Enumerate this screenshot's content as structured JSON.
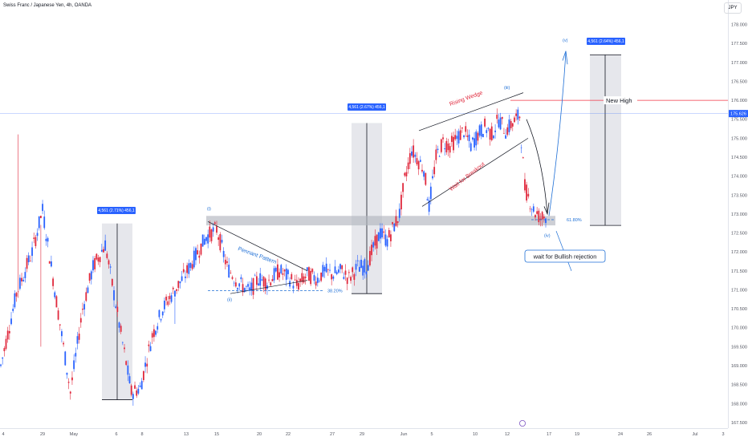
{
  "header": {
    "title": "Swiss Franc / Japanese Yen, 4h, OANDA",
    "currency_button": "JPY"
  },
  "chart_data": {
    "type": "candlestick",
    "symbol": "CHFJPY",
    "timeframe": "4h",
    "ylim": [
      167.35,
      178.35
    ],
    "y_ticks": [
      167.5,
      168.0,
      168.5,
      169.0,
      169.5,
      170.0,
      170.5,
      171.0,
      171.5,
      172.0,
      172.5,
      173.0,
      173.5,
      174.0,
      174.5,
      175.0,
      175.5,
      176.0,
      176.5,
      177.0,
      177.5,
      178.0
    ],
    "y_tick_labels": [
      "167.500",
      "168.000",
      "168.500",
      "169.000",
      "169.500",
      "170.000",
      "170.500",
      "171.000",
      "171.500",
      "172.000",
      "172.500",
      "173.000",
      "173.500",
      "174.000",
      "174.500",
      "175.000",
      "175.500",
      "176.000",
      "176.500",
      "177.000",
      "177.500",
      "178.000"
    ],
    "x_tick_labels": [
      "4",
      "29",
      "May",
      "6",
      "8",
      "13",
      "15",
      "20",
      "22",
      "27",
      "29",
      "Jun",
      "5",
      "10",
      "12",
      "17",
      "19",
      "24",
      "26",
      "Jul",
      "3"
    ],
    "current_price": "175.626",
    "colors": {
      "up": "#2962ff",
      "down": "#e0283c",
      "wedge_text": "#e0283c",
      "annotation_blue": "#1e6fd6"
    },
    "path": [
      169.0,
      170.9,
      172.0,
      173.1,
      168.3,
      170.5,
      171.6,
      172.2,
      170.1,
      168.3,
      168.4,
      169.8,
      170.5,
      171.0,
      171.4,
      171.9,
      172.4,
      172.6,
      171.6,
      171.2,
      170.95,
      171.3,
      171.2,
      171.5,
      171.3,
      171.1,
      171.4,
      171.3,
      171.5,
      171.4,
      171.5,
      171.3,
      171.6,
      171.6,
      172.1,
      172.5,
      172.3,
      172.7,
      173.0,
      173.9,
      174.7,
      174.4,
      174.2,
      173.2,
      174.5,
      174.9,
      174.8,
      175.0,
      175.2,
      174.8,
      175.1,
      175.3,
      175.1,
      175.5,
      175.2,
      175.4,
      175.6,
      173.7,
      173.1,
      172.9,
      172.95
    ],
    "path_indices": [
      0,
      9,
      18,
      24,
      40,
      47,
      53,
      60,
      68,
      75,
      80,
      87,
      93,
      100,
      106,
      112,
      118,
      124,
      130,
      136,
      143,
      148,
      153,
      160,
      166,
      170,
      176,
      182,
      186,
      190,
      196,
      200,
      205,
      210,
      214,
      218,
      222,
      226,
      229,
      232,
      236,
      240,
      243,
      246,
      250,
      254,
      258,
      262,
      266,
      270,
      274,
      278,
      282,
      286,
      290,
      294,
      298,
      301,
      306,
      310,
      313
    ],
    "candle_count": 314,
    "spike_markers": [
      {
        "index": 10,
        "high": 175.1
      },
      {
        "index": 23,
        "high": 169.5
      },
      {
        "index": 100,
        "high": 170.1
      }
    ],
    "annotations": {
      "pennant_pattern": "Pennant Pattern",
      "rising_wedge": "Rising Wedge",
      "wait_for_breakout": "Wait for Breakout",
      "new_high": "New High",
      "wait_bullish": "wait for Bullish rejection",
      "fib_382": "38.20%",
      "fib_618": "61.80%",
      "wave_i": "(i)",
      "wave_ii": "(ii)",
      "wave_iii": "(iii)",
      "wave_iv": "(iv)",
      "wave_v": "(v)",
      "measure_label_1": "4,561 (2.71%) 456,1",
      "measure_label_2": "4,561 (2.67%) 456,1",
      "measure_label_3": "4,561 (2.64%) 456,1"
    }
  }
}
